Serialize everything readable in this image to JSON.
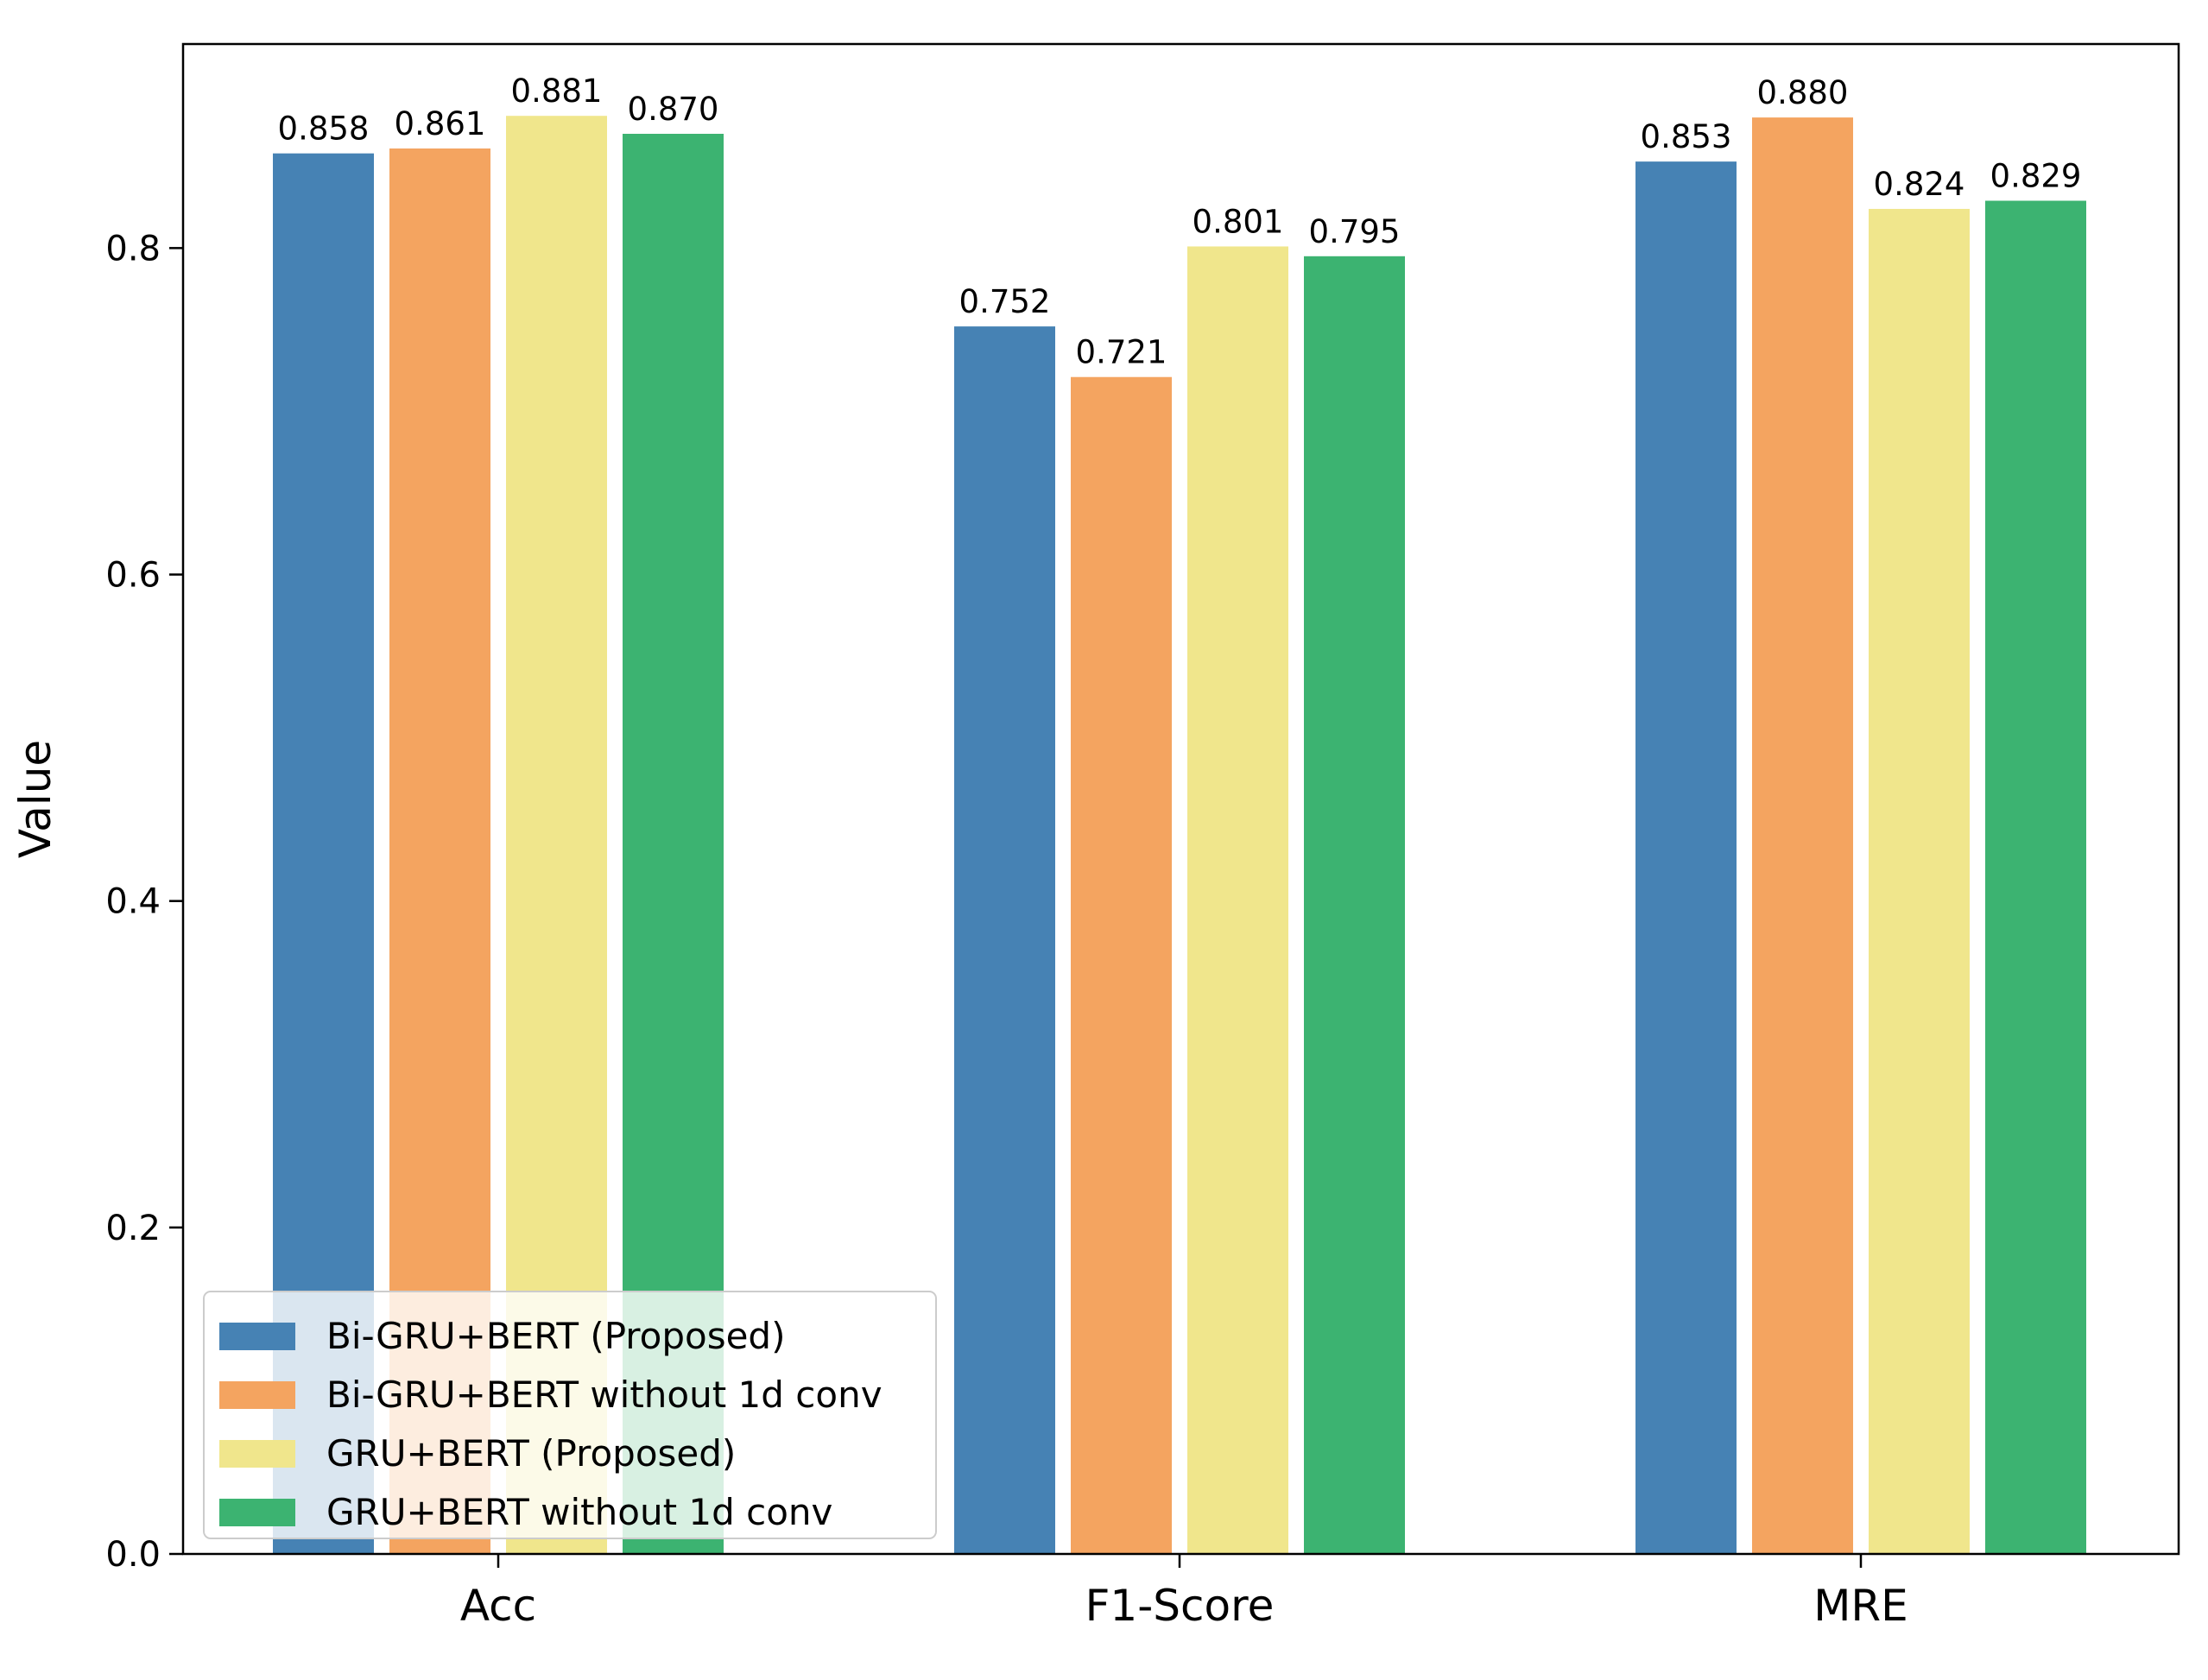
{
  "chart_data": {
    "type": "bar",
    "title": "",
    "xlabel": "",
    "ylabel": "Value",
    "ylim": [
      0,
      0.925
    ],
    "yticks": [
      "0.0",
      "0.2",
      "0.4",
      "0.6",
      "0.8"
    ],
    "ytick_values": [
      0.0,
      0.2,
      0.4,
      0.6,
      0.8
    ],
    "categories": [
      "Acc",
      "F1-Score",
      "MRE"
    ],
    "series": [
      {
        "name": "Bi-GRU+BERT (Proposed)",
        "color": "#4682b4",
        "values": [
          0.858,
          0.752,
          0.853
        ],
        "labels": [
          "0.858",
          "0.752",
          "0.853"
        ]
      },
      {
        "name": "Bi-GRU+BERT without 1d conv",
        "color": "#f4a460",
        "values": [
          0.861,
          0.721,
          0.88
        ],
        "labels": [
          "0.861",
          "0.721",
          "0.880"
        ]
      },
      {
        "name": "GRU+BERT (Proposed)",
        "color": "#f0e68c",
        "values": [
          0.881,
          0.801,
          0.824
        ],
        "labels": [
          "0.881",
          "0.801",
          "0.824"
        ]
      },
      {
        "name": "GRU+BERT without 1d conv",
        "color": "#3cb371",
        "values": [
          0.87,
          0.795,
          0.829
        ],
        "labels": [
          "0.870",
          "0.795",
          "0.829"
        ]
      }
    ],
    "legend_position": "lower-left",
    "grid": false
  }
}
